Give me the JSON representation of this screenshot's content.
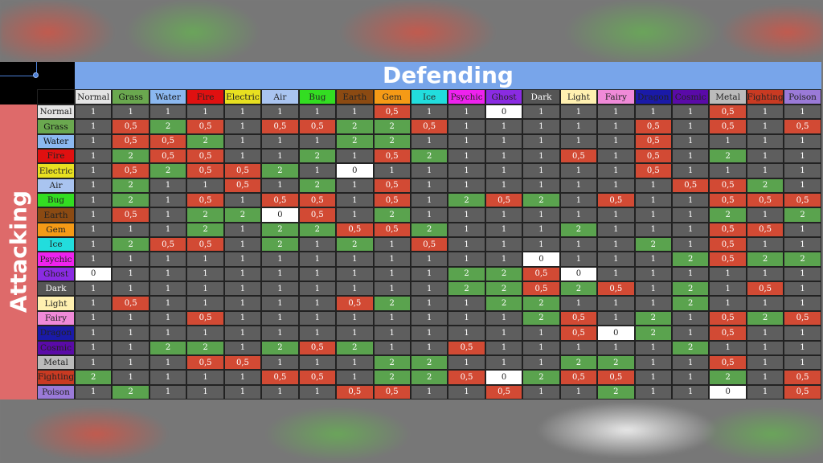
{
  "defending_label": "Defending",
  "attacking_label": "Attacking",
  "types": [
    "Normal",
    "Grass",
    "Water",
    "Fire",
    "Electric",
    "Air",
    "Bug",
    "Earth",
    "Gem",
    "Ice",
    "Psychic",
    "Ghost",
    "Dark",
    "Light",
    "Fairy",
    "Dragon",
    "Cosmic",
    "Metal",
    "Fighting",
    "Poison"
  ],
  "type_colors": {
    "Normal": [
      "#e4e4e4",
      "#222222"
    ],
    "Grass": [
      "#6aa84f",
      "#111111"
    ],
    "Water": [
      "#8bb8f0",
      "#111111"
    ],
    "Fire": [
      "#e01010",
      "#222222"
    ],
    "Electric": [
      "#e8e020",
      "#222222"
    ],
    "Air": [
      "#a9c4f0",
      "#222222"
    ],
    "Bug": [
      "#33dd22",
      "#222222"
    ],
    "Earth": [
      "#8b4a12",
      "#222222"
    ],
    "Gem": [
      "#f59a16",
      "#222222"
    ],
    "Ice": [
      "#22dddd",
      "#222222"
    ],
    "Psychic": [
      "#ee22ee",
      "#222222"
    ],
    "Ghost": [
      "#8a2be2",
      "#222222"
    ],
    "Dark": [
      "#555555",
      "#ffffff"
    ],
    "Light": [
      "#fff0b0",
      "#222222"
    ],
    "Fairy": [
      "#f08ad8",
      "#222222"
    ],
    "Dragon": [
      "#1a1aa8",
      "#222222"
    ],
    "Cosmic": [
      "#5a0aa8",
      "#222222"
    ],
    "Metal": [
      "#bbbbbb",
      "#222222"
    ],
    "Fighting": [
      "#c93a22",
      "#222222"
    ],
    "Poison": [
      "#9a7ad8",
      "#222222"
    ]
  },
  "value_colors": {
    "1": "#5e5e5e",
    "2": "#5aa34e",
    "0,5": "#d24a34",
    "0": "#ffffff"
  },
  "matrix": [
    [
      "1",
      "1",
      "1",
      "1",
      "1",
      "1",
      "1",
      "1",
      "0,5",
      "1",
      "1",
      "0",
      "1",
      "1",
      "1",
      "1",
      "1",
      "0,5",
      "1",
      "1"
    ],
    [
      "1",
      "0,5",
      "2",
      "0,5",
      "1",
      "0,5",
      "0,5",
      "2",
      "2",
      "0,5",
      "1",
      "1",
      "1",
      "1",
      "1",
      "0,5",
      "1",
      "0,5",
      "1",
      "0,5"
    ],
    [
      "1",
      "0,5",
      "0,5",
      "2",
      "1",
      "1",
      "1",
      "2",
      "2",
      "1",
      "1",
      "1",
      "1",
      "1",
      "1",
      "0,5",
      "1",
      "1",
      "1",
      "1"
    ],
    [
      "1",
      "2",
      "0,5",
      "0,5",
      "1",
      "1",
      "2",
      "1",
      "0,5",
      "2",
      "1",
      "1",
      "1",
      "0,5",
      "1",
      "0,5",
      "1",
      "2",
      "1",
      "1"
    ],
    [
      "1",
      "0,5",
      "2",
      "0,5",
      "0,5",
      "2",
      "1",
      "0",
      "1",
      "1",
      "1",
      "1",
      "1",
      "1",
      "1",
      "0,5",
      "1",
      "1",
      "1",
      "1"
    ],
    [
      "1",
      "2",
      "1",
      "1",
      "0,5",
      "1",
      "2",
      "1",
      "0,5",
      "1",
      "1",
      "1",
      "1",
      "1",
      "1",
      "1",
      "0,5",
      "0,5",
      "2",
      "1"
    ],
    [
      "1",
      "2",
      "1",
      "0,5",
      "1",
      "0,5",
      "0,5",
      "1",
      "0,5",
      "1",
      "2",
      "0,5",
      "2",
      "1",
      "0,5",
      "1",
      "1",
      "0,5",
      "0,5",
      "0,5"
    ],
    [
      "1",
      "0,5",
      "1",
      "2",
      "2",
      "0",
      "0,5",
      "1",
      "2",
      "1",
      "1",
      "1",
      "1",
      "1",
      "1",
      "1",
      "1",
      "2",
      "1",
      "2"
    ],
    [
      "1",
      "1",
      "1",
      "2",
      "1",
      "2",
      "2",
      "0,5",
      "0,5",
      "2",
      "1",
      "1",
      "1",
      "2",
      "1",
      "1",
      "1",
      "0,5",
      "0,5",
      "1"
    ],
    [
      "1",
      "2",
      "0,5",
      "0,5",
      "1",
      "2",
      "1",
      "2",
      "1",
      "0,5",
      "1",
      "1",
      "1",
      "1",
      "1",
      "2",
      "1",
      "0,5",
      "1",
      "1"
    ],
    [
      "1",
      "1",
      "1",
      "1",
      "1",
      "1",
      "1",
      "1",
      "1",
      "1",
      "1",
      "1",
      "0",
      "1",
      "1",
      "1",
      "2",
      "0,5",
      "2",
      "2"
    ],
    [
      "0",
      "1",
      "1",
      "1",
      "1",
      "1",
      "1",
      "1",
      "1",
      "1",
      "2",
      "2",
      "0,5",
      "0",
      "1",
      "1",
      "1",
      "1",
      "1",
      "1"
    ],
    [
      "1",
      "1",
      "1",
      "1",
      "1",
      "1",
      "1",
      "1",
      "1",
      "1",
      "2",
      "2",
      "0,5",
      "2",
      "0,5",
      "1",
      "2",
      "1",
      "0,5",
      "1"
    ],
    [
      "1",
      "0,5",
      "1",
      "1",
      "1",
      "1",
      "1",
      "0,5",
      "2",
      "1",
      "1",
      "2",
      "2",
      "1",
      "1",
      "1",
      "2",
      "1",
      "1",
      "1"
    ],
    [
      "1",
      "1",
      "1",
      "0,5",
      "1",
      "1",
      "1",
      "1",
      "1",
      "1",
      "1",
      "1",
      "2",
      "0,5",
      "1",
      "2",
      "1",
      "0,5",
      "2",
      "0,5"
    ],
    [
      "1",
      "1",
      "1",
      "1",
      "1",
      "1",
      "1",
      "1",
      "1",
      "1",
      "1",
      "1",
      "1",
      "0,5",
      "0",
      "2",
      "1",
      "0,5",
      "1",
      "1"
    ],
    [
      "1",
      "1",
      "2",
      "2",
      "1",
      "2",
      "0,5",
      "2",
      "1",
      "1",
      "0,5",
      "1",
      "1",
      "1",
      "1",
      "1",
      "2",
      "1",
      "1",
      "1"
    ],
    [
      "1",
      "1",
      "1",
      "0,5",
      "0,5",
      "1",
      "1",
      "1",
      "2",
      "2",
      "1",
      "1",
      "1",
      "2",
      "2",
      "1",
      "1",
      "0,5",
      "1",
      "1"
    ],
    [
      "2",
      "1",
      "1",
      "1",
      "1",
      "0,5",
      "0,5",
      "1",
      "2",
      "2",
      "0,5",
      "0",
      "2",
      "0,5",
      "0,5",
      "1",
      "1",
      "2",
      "1",
      "0,5"
    ],
    [
      "1",
      "2",
      "1",
      "1",
      "1",
      "1",
      "1",
      "0,5",
      "0,5",
      "1",
      "1",
      "0,5",
      "1",
      "1",
      "2",
      "1",
      "1",
      "0",
      "1",
      "0,5"
    ]
  ]
}
